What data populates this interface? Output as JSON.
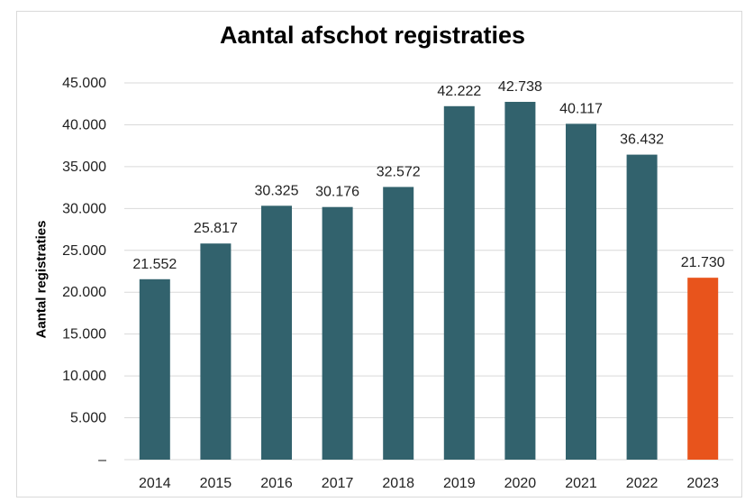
{
  "chart_data": {
    "type": "bar",
    "title": "Aantal afschot registraties",
    "xlabel": "",
    "ylabel": "Aantal registraties",
    "categories": [
      "2014",
      "2015",
      "2016",
      "2017",
      "2018",
      "2019",
      "2020",
      "2021",
      "2022",
      "2023"
    ],
    "values": [
      21552,
      25817,
      30325,
      30176,
      32572,
      42222,
      42738,
      40117,
      36432,
      21730
    ],
    "value_labels": [
      "21.552",
      "25.817",
      "30.325",
      "30.176",
      "32.572",
      "42.222",
      "42.738",
      "40.117",
      "36.432",
      "21.730"
    ],
    "ylim": [
      0,
      45000
    ],
    "yticks": [
      0,
      5000,
      10000,
      15000,
      20000,
      25000,
      30000,
      35000,
      40000,
      45000
    ],
    "ytick_labels": [
      "–",
      "5.000",
      "10.000",
      "15.000",
      "20.000",
      "25.000",
      "30.000",
      "35.000",
      "40.000",
      "45.000"
    ],
    "grid": true,
    "legend": "none",
    "colors": {
      "bar": "#32626d",
      "highlight": "#e8541c",
      "grid": "#d9d9d9"
    },
    "highlight_index": 9
  }
}
